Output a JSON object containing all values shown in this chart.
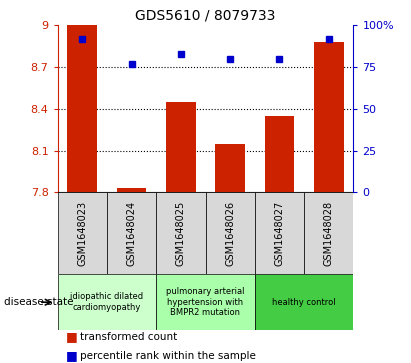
{
  "title": "GDS5610 / 8079733",
  "samples": [
    "GSM1648023",
    "GSM1648024",
    "GSM1648025",
    "GSM1648026",
    "GSM1648027",
    "GSM1648028"
  ],
  "bar_values": [
    9.0,
    7.83,
    8.45,
    8.15,
    8.35,
    8.88
  ],
  "percentile_values": [
    92,
    77,
    83,
    80,
    80,
    92
  ],
  "bar_color": "#cc2200",
  "dot_color": "#0000cc",
  "ylim_left": [
    7.8,
    9.0
  ],
  "ylim_right": [
    0,
    100
  ],
  "yticks_left": [
    7.8,
    8.1,
    8.4,
    8.7,
    9.0
  ],
  "yticks_right": [
    0,
    25,
    50,
    75,
    100
  ],
  "ytick_labels_left": [
    "7.8",
    "8.1",
    "8.4",
    "8.7",
    "9"
  ],
  "ytick_labels_right": [
    "0",
    "25",
    "50",
    "75",
    "100%"
  ],
  "hlines": [
    8.1,
    8.4,
    8.7
  ],
  "disease_groups": [
    {
      "label": "idiopathic dilated\ncardiomyopathy",
      "indices": [
        0,
        1
      ],
      "color": "#ccffcc"
    },
    {
      "label": "pulmonary arterial\nhypertension with\nBMPR2 mutation",
      "indices": [
        2,
        3
      ],
      "color": "#aaffaa"
    },
    {
      "label": "healthy control",
      "indices": [
        4,
        5
      ],
      "color": "#44cc44"
    }
  ],
  "legend_bar_label": "transformed count",
  "legend_dot_label": "percentile rank within the sample",
  "sample_box_color": "#d8d8d8",
  "bar_width": 0.6,
  "fig_width": 4.11,
  "fig_height": 3.63
}
